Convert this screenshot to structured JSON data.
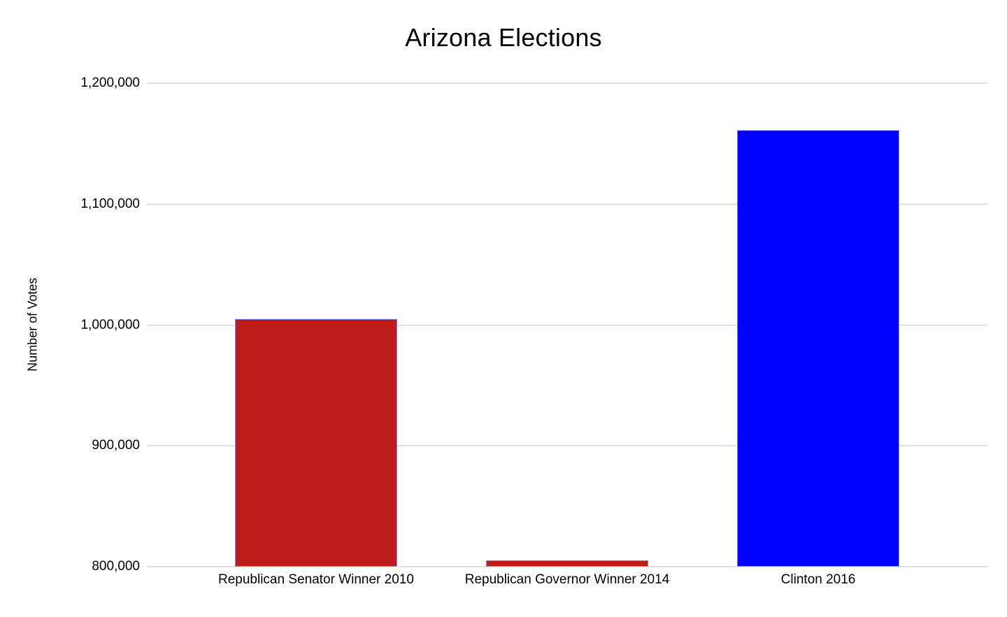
{
  "chart_data": {
    "type": "bar",
    "title": "Arizona Elections",
    "ylabel": "Number of Votes",
    "xlabel": "",
    "categories": [
      "Republican Senator Winner 2010",
      "Republican Governor Winner 2014",
      "Clinton 2016"
    ],
    "values": [
      1005000,
      805000,
      1161000
    ],
    "bar_colors": [
      "#ba1c1c",
      "#ba1c1c",
      "#0000ff"
    ],
    "bar_border_color": "#8585ff",
    "ylim": [
      800000,
      1200000
    ],
    "yticks": [
      800000,
      900000,
      1000000,
      1100000,
      1200000
    ],
    "ytick_labels": [
      "800,000",
      "900,000",
      "1,000,000",
      "1,100,000",
      "1,200,000"
    ],
    "grid": true,
    "gridline_color": "#e0e0e0",
    "background_color": "#ffffff",
    "legend_position": "none"
  }
}
